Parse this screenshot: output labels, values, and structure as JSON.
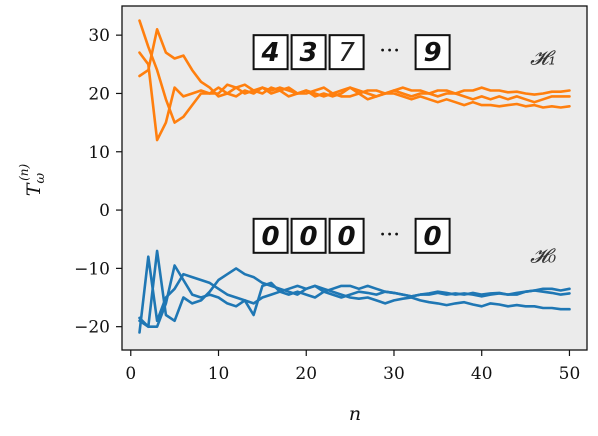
{
  "chart_data": {
    "type": "line",
    "xlabel": "n",
    "ylabel": "T_ω^(n)",
    "xlim": [
      -1,
      52
    ],
    "ylim": [
      -24,
      35
    ],
    "xticks": [
      0,
      10,
      20,
      30,
      40,
      50
    ],
    "yticks": [
      -20,
      -10,
      0,
      10,
      20,
      30
    ],
    "xtick_labels": [
      "0",
      "10",
      "20",
      "30",
      "40",
      "50"
    ],
    "ytick_labels": [
      "−20",
      "−10",
      "0",
      "10",
      "20",
      "30"
    ],
    "grid": false,
    "background": "#ebebeb",
    "colors": {
      "h1": "#ff7f0e",
      "h0": "#1f77b4"
    },
    "groups": [
      {
        "label": "𝓗₁",
        "color_key": "h1",
        "digits": [
          "4",
          "3",
          "7",
          "9"
        ],
        "series": [
          {
            "x": [
              1,
              2,
              3,
              4,
              5,
              6,
              7,
              8,
              9,
              10,
              11,
              12,
              13,
              14,
              15,
              16,
              17,
              18,
              19,
              20,
              21,
              22,
              23,
              24,
              25,
              26,
              27,
              28,
              29,
              30,
              31,
              32,
              33,
              34,
              35,
              36,
              37,
              38,
              39,
              40,
              41,
              42,
              43,
              44,
              45,
              46,
              47,
              48,
              49,
              50
            ],
            "y": [
              32.5,
              28,
              24,
              19,
              15,
              16,
              18,
              20,
              20,
              21,
              20,
              19.5,
              20.5,
              20,
              21,
              20,
              20.5,
              19.5,
              20,
              20.5,
              19.5,
              20,
              19.5,
              20,
              21,
              20,
              19,
              19.5,
              20,
              20,
              19.5,
              19,
              19.5,
              19,
              18.5,
              19,
              18.5,
              18,
              18.5,
              18,
              18,
              17.8,
              18,
              18.2,
              17.8,
              18,
              17.6,
              17.8,
              17.6,
              17.8
            ]
          },
          {
            "x": [
              1,
              2,
              3,
              4,
              5,
              6,
              7,
              8,
              9,
              10,
              11,
              12,
              13,
              14,
              15,
              16,
              17,
              18,
              19,
              20,
              21,
              22,
              23,
              24,
              25,
              26,
              27,
              28,
              29,
              30,
              31,
              32,
              33,
              34,
              35,
              36,
              37,
              38,
              39,
              40,
              41,
              42,
              43,
              44,
              45,
              46,
              47,
              48,
              49,
              50
            ],
            "y": [
              23,
              24,
              31,
              27,
              26,
              26.5,
              24,
              22,
              21,
              19.5,
              20,
              21,
              20,
              20.5,
              20,
              21,
              20.5,
              21,
              20,
              20,
              20.5,
              21,
              20,
              20.5,
              21,
              20.5,
              20,
              19.5,
              20,
              20.5,
              20,
              19.5,
              20,
              20,
              19.5,
              20,
              20,
              19.5,
              19,
              19.5,
              19,
              19.5,
              19,
              19.5,
              19,
              18.5,
              19,
              19.5,
              19.5,
              19.5
            ]
          },
          {
            "x": [
              1,
              2,
              3,
              4,
              5,
              6,
              7,
              8,
              9,
              10,
              11,
              12,
              13,
              14,
              15,
              16,
              17,
              18,
              19,
              20,
              21,
              22,
              23,
              24,
              25,
              26,
              27,
              28,
              29,
              30,
              31,
              32,
              33,
              34,
              35,
              36,
              37,
              38,
              39,
              40,
              41,
              42,
              43,
              44,
              45,
              46,
              47,
              48,
              49,
              50
            ],
            "y": [
              27,
              25,
              12,
              15,
              21,
              19.5,
              20,
              20.5,
              20,
              20,
              21.5,
              21,
              21.5,
              20.5,
              21,
              20.5,
              21,
              20.5,
              20,
              20.5,
              20,
              19.5,
              20,
              19.5,
              19.5,
              20,
              20.5,
              20.5,
              20,
              20.5,
              21,
              20.5,
              20.5,
              20,
              20.5,
              20.5,
              20,
              20.5,
              20.5,
              21,
              20.5,
              20.5,
              20.2,
              20.3,
              20,
              19.8,
              20,
              20.3,
              20.3,
              20.5
            ]
          }
        ]
      },
      {
        "label": "𝓗₀",
        "color_key": "h0",
        "digits": [
          "0",
          "0",
          "0",
          "0"
        ],
        "series": [
          {
            "x": [
              1,
              2,
              3,
              4,
              5,
              6,
              7,
              8,
              9,
              10,
              11,
              12,
              13,
              14,
              15,
              16,
              17,
              18,
              19,
              20,
              21,
              22,
              23,
              24,
              25,
              26,
              27,
              28,
              29,
              30,
              31,
              32,
              33,
              34,
              35,
              36,
              37,
              38,
              39,
              40,
              41,
              42,
              43,
              44,
              45,
              46,
              47,
              48,
              49,
              50
            ],
            "y": [
              -21,
              -8,
              -19,
              -15,
              -13.5,
              -11,
              -11.5,
              -12,
              -12.5,
              -13.5,
              -14.5,
              -15,
              -15.5,
              -16,
              -15,
              -14.5,
              -14,
              -13.5,
              -13,
              -13.5,
              -13,
              -13.5,
              -14,
              -14.5,
              -15,
              -15.2,
              -15,
              -15.5,
              -16,
              -15.5,
              -15.2,
              -15,
              -15.5,
              -15.8,
              -16,
              -16.3,
              -16,
              -15.8,
              -16.2,
              -16.5,
              -16,
              -16.2,
              -16.5,
              -16.3,
              -16.5,
              -16.5,
              -16.8,
              -16.8,
              -17,
              -17
            ]
          },
          {
            "x": [
              1,
              2,
              3,
              4,
              5,
              6,
              7,
              8,
              9,
              10,
              11,
              12,
              13,
              14,
              15,
              16,
              17,
              18,
              19,
              20,
              21,
              22,
              23,
              24,
              25,
              26,
              27,
              28,
              29,
              30,
              31,
              32,
              33,
              34,
              35,
              36,
              37,
              38,
              39,
              40,
              41,
              42,
              43,
              44,
              45,
              46,
              47,
              48,
              49,
              50
            ],
            "y": [
              -18.5,
              -20,
              -7,
              -18,
              -19,
              -15,
              -16,
              -15.5,
              -14,
              -12,
              -11,
              -10,
              -11,
              -11.5,
              -12.5,
              -13,
              -13.5,
              -14,
              -14.5,
              -13.5,
              -13,
              -14,
              -14.5,
              -15,
              -14.5,
              -14,
              -14.2,
              -14.5,
              -14,
              -14.2,
              -14.5,
              -14.8,
              -14.5,
              -14.3,
              -14,
              -14.2,
              -14.5,
              -14.3,
              -14.5,
              -14.8,
              -14.5,
              -14.3,
              -14.5,
              -14.2,
              -14,
              -13.8,
              -14,
              -14.2,
              -14.5,
              -14.3
            ]
          },
          {
            "x": [
              1,
              2,
              3,
              4,
              5,
              6,
              7,
              8,
              9,
              10,
              11,
              12,
              13,
              14,
              15,
              16,
              17,
              18,
              19,
              20,
              21,
              22,
              23,
              24,
              25,
              26,
              27,
              28,
              29,
              30,
              31,
              32,
              33,
              34,
              35,
              36,
              37,
              38,
              39,
              40,
              41,
              42,
              43,
              44,
              45,
              46,
              47,
              48,
              49,
              50
            ],
            "y": [
              -19,
              -20,
              -20,
              -16,
              -9.5,
              -12,
              -14.5,
              -15,
              -14.5,
              -15,
              -16,
              -16.5,
              -15.5,
              -18,
              -13,
              -12.5,
              -14,
              -14.5,
              -14,
              -14.5,
              -15,
              -14,
              -13.5,
              -13,
              -13,
              -13.5,
              -13,
              -13.5,
              -14,
              -14.2,
              -14.5,
              -14.8,
              -14.5,
              -14.5,
              -14.2,
              -14.5,
              -14.3,
              -14.5,
              -14.2,
              -14.5,
              -14.3,
              -14.2,
              -14.5,
              -14.5,
              -14,
              -13.8,
              -13.5,
              -13.5,
              -13.8,
              -13.5
            ]
          }
        ]
      }
    ]
  }
}
